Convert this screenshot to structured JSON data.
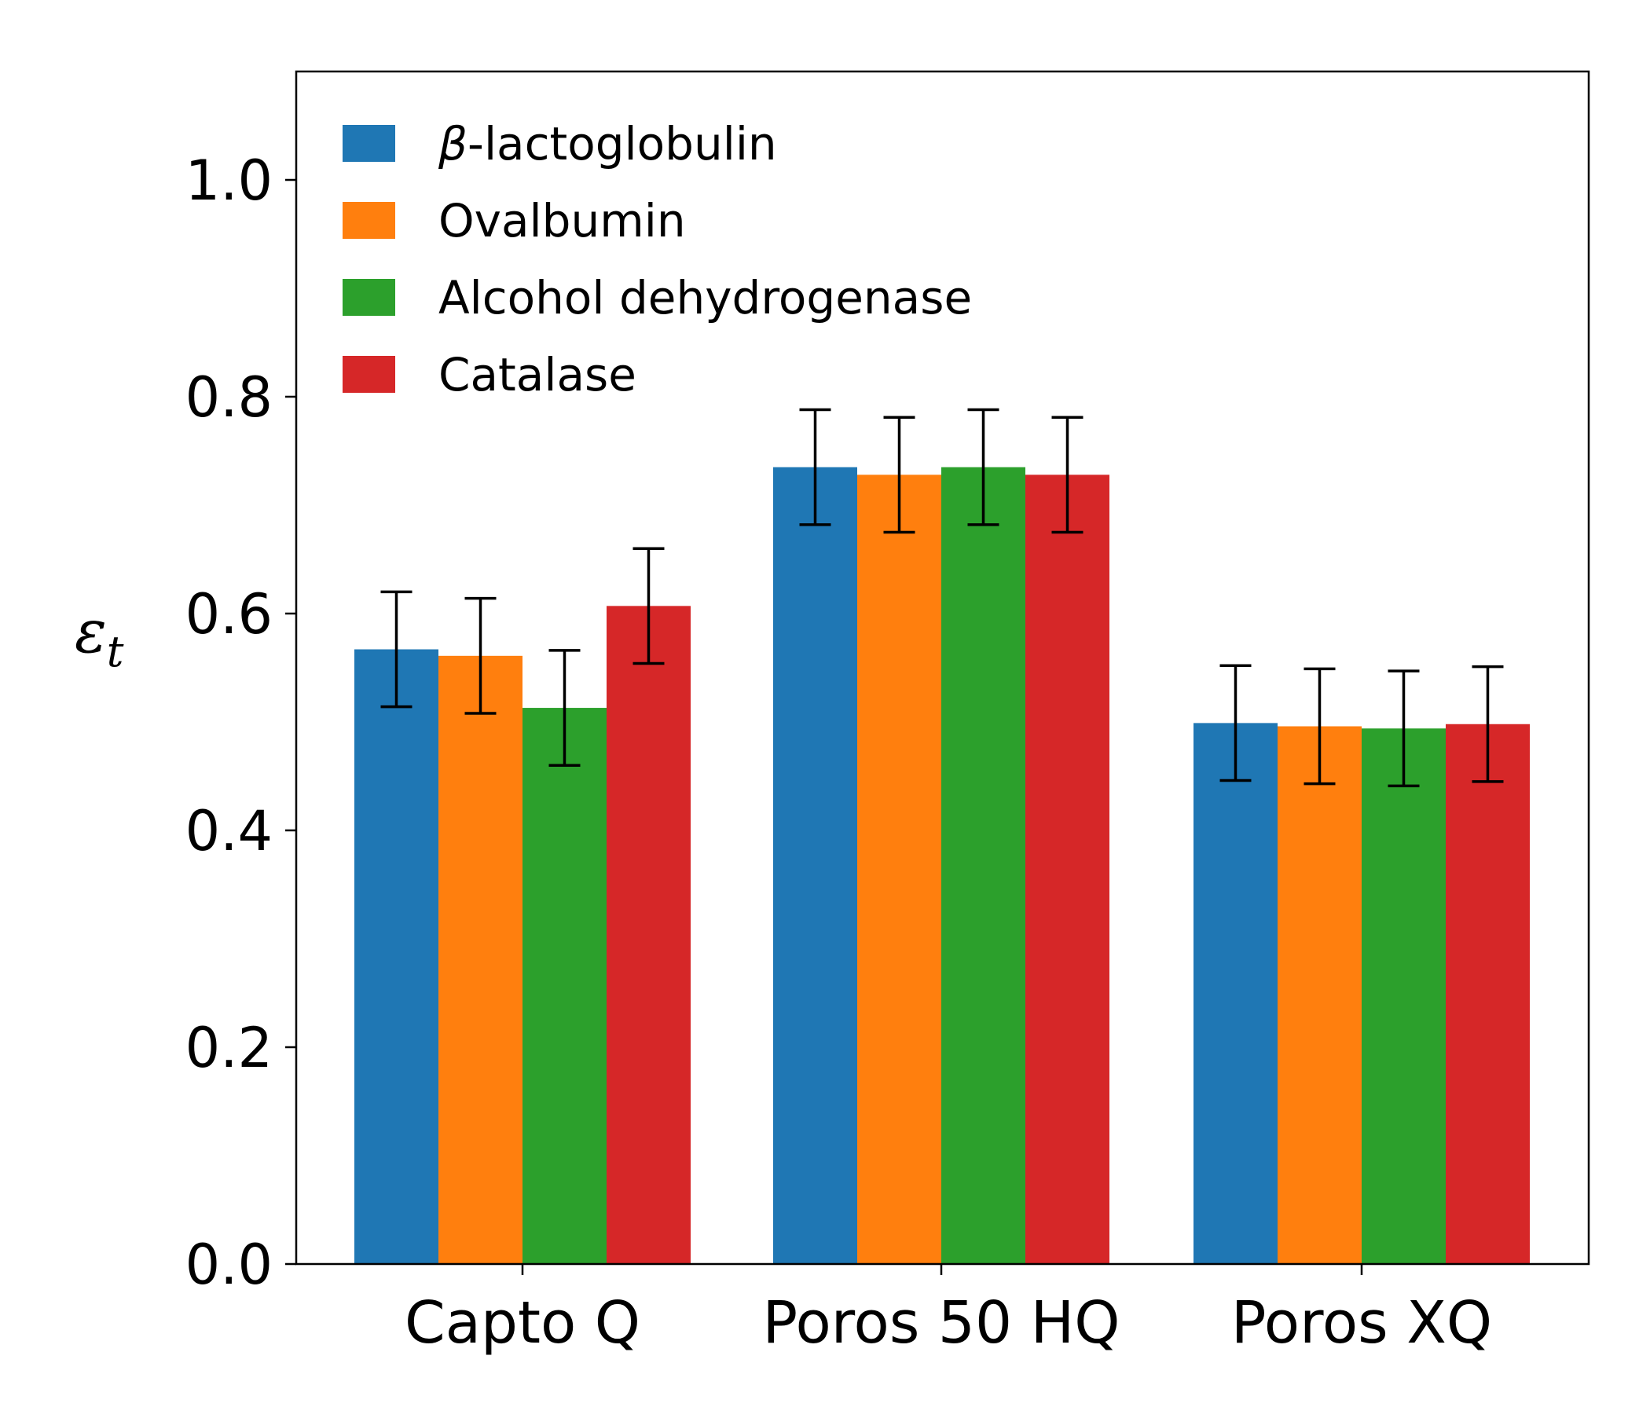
{
  "chart_data": {
    "type": "bar",
    "title": "",
    "xlabel": "",
    "ylabel": "ε",
    "ylabel_subscript": "t",
    "ylim": [
      0,
      1.1
    ],
    "yticks": [
      "0.0",
      "0.2",
      "0.4",
      "0.6",
      "0.8",
      "1.0"
    ],
    "ytick_values": [
      0.0,
      0.2,
      0.4,
      0.6,
      0.8,
      1.0
    ],
    "categories": [
      "Capto Q",
      "Poros 50 HQ",
      "Poros XQ"
    ],
    "legend_position": "top-left",
    "grid": false,
    "series": [
      {
        "name": "β-lactoglobulin",
        "name_prefix": "β",
        "name_rest": "-lactoglobulin",
        "color": "#1f77b4",
        "values": [
          0.567,
          0.735,
          0.499
        ],
        "errors": [
          0.053,
          0.053,
          0.053
        ]
      },
      {
        "name": "Ovalbumin",
        "color": "#ff7f0e",
        "values": [
          0.561,
          0.728,
          0.496
        ],
        "errors": [
          0.053,
          0.053,
          0.053
        ]
      },
      {
        "name": "Alcohol dehydrogenase",
        "color": "#2ca02c",
        "values": [
          0.513,
          0.735,
          0.494
        ],
        "errors": [
          0.053,
          0.053,
          0.053
        ]
      },
      {
        "name": "Catalase",
        "color": "#d62728",
        "values": [
          0.607,
          0.728,
          0.498
        ],
        "errors": [
          0.053,
          0.053,
          0.053
        ]
      }
    ]
  }
}
